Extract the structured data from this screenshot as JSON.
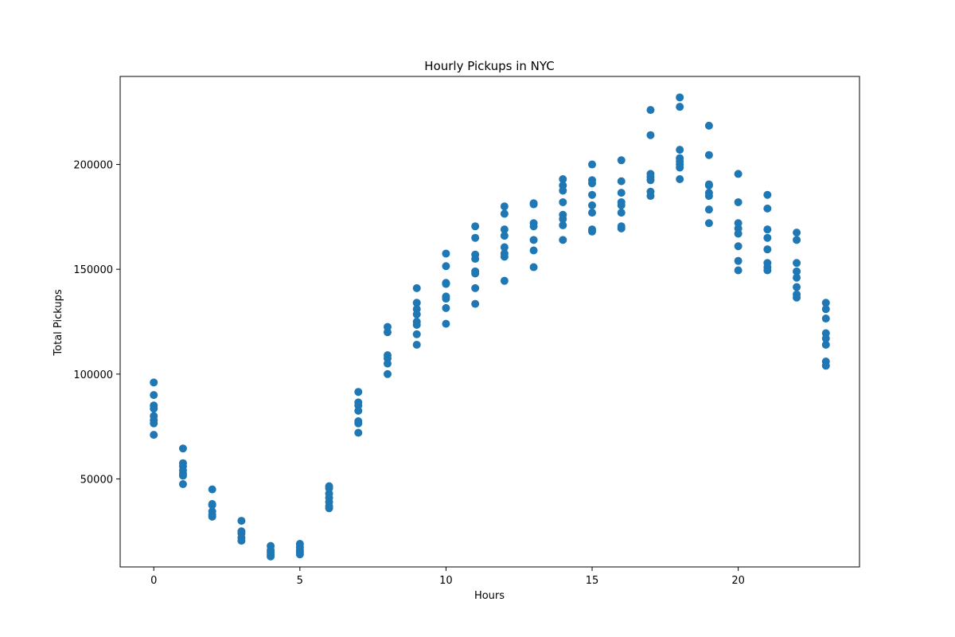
{
  "chart_data": {
    "type": "scatter",
    "title": "Hourly Pickups in NYC",
    "xlabel": "Hours",
    "ylabel": "Total Pickups",
    "xlim": [
      -1.15,
      24.15
    ],
    "ylim": [
      8000,
      242000
    ],
    "xticks": [
      0,
      5,
      10,
      15,
      20
    ],
    "yticks": [
      50000,
      100000,
      150000,
      200000
    ],
    "grid": false,
    "marker_color": "#1f77b4",
    "points": [
      {
        "x": 0,
        "ys": [
          96000,
          90000,
          85000,
          83500,
          80000,
          78000,
          76500,
          71000
        ]
      },
      {
        "x": 1,
        "ys": [
          64500,
          57500,
          56000,
          54000,
          52500,
          51500,
          47500
        ]
      },
      {
        "x": 2,
        "ys": [
          45000,
          38000,
          37500,
          34500,
          33000,
          32000
        ]
      },
      {
        "x": 3,
        "ys": [
          30000,
          25000,
          24000,
          22000,
          20500
        ]
      },
      {
        "x": 4,
        "ys": [
          18000,
          16000,
          15000,
          14000,
          13000
        ]
      },
      {
        "x": 5,
        "ys": [
          19000,
          17500,
          16000,
          15000,
          14000
        ]
      },
      {
        "x": 6,
        "ys": [
          46500,
          45500,
          43000,
          41000,
          39000,
          37000,
          36000
        ]
      },
      {
        "x": 7,
        "ys": [
          91500,
          86500,
          85000,
          82500,
          77500,
          76500,
          72000
        ]
      },
      {
        "x": 8,
        "ys": [
          122500,
          120000,
          109000,
          107500,
          105000,
          100000
        ]
      },
      {
        "x": 9,
        "ys": [
          141000,
          134000,
          131000,
          128500,
          125000,
          123500,
          119000,
          114000
        ]
      },
      {
        "x": 10,
        "ys": [
          157500,
          151500,
          143500,
          143000,
          137000,
          136000,
          131500,
          124000
        ]
      },
      {
        "x": 11,
        "ys": [
          170500,
          165000,
          157000,
          155000,
          149000,
          148000,
          141000,
          133500
        ]
      },
      {
        "x": 12,
        "ys": [
          180000,
          176500,
          169000,
          166000,
          160500,
          157500,
          156000,
          144500
        ]
      },
      {
        "x": 13,
        "ys": [
          181500,
          181000,
          172000,
          170500,
          164000,
          159000,
          151000
        ]
      },
      {
        "x": 14,
        "ys": [
          193000,
          190000,
          187500,
          182000,
          176000,
          174000,
          171000,
          164000
        ]
      },
      {
        "x": 15,
        "ys": [
          200000,
          192500,
          191000,
          185500,
          180500,
          177000,
          169000,
          168000
        ]
      },
      {
        "x": 16,
        "ys": [
          202000,
          192000,
          186500,
          182000,
          180500,
          177000,
          170500,
          169500
        ]
      },
      {
        "x": 17,
        "ys": [
          226000,
          214000,
          195500,
          194000,
          192500,
          187000,
          185000
        ]
      },
      {
        "x": 18,
        "ys": [
          232000,
          227500,
          207000,
          203000,
          201500,
          200000,
          198500,
          193000
        ]
      },
      {
        "x": 19,
        "ys": [
          218500,
          204500,
          190500,
          190000,
          186500,
          185000,
          178500,
          172000
        ]
      },
      {
        "x": 20,
        "ys": [
          195500,
          182000,
          172000,
          169500,
          167000,
          161000,
          154000,
          149500
        ]
      },
      {
        "x": 21,
        "ys": [
          185500,
          179000,
          169000,
          165000,
          159500,
          153000,
          151000,
          149500
        ]
      },
      {
        "x": 22,
        "ys": [
          167500,
          164000,
          153000,
          149000,
          146000,
          141500,
          138000,
          136500
        ]
      },
      {
        "x": 23,
        "ys": [
          134000,
          131000,
          126500,
          119500,
          117000,
          114000,
          106000,
          104000
        ]
      }
    ]
  }
}
